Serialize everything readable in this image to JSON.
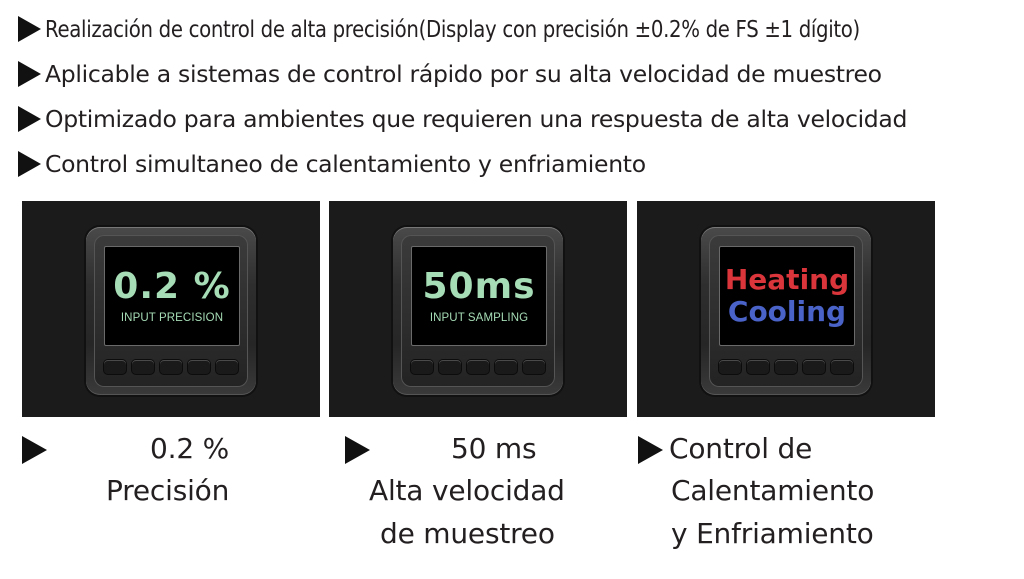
{
  "bullets": [
    "Realización de control de alta precisión(Display con precisión ±0.2% de FS ±1 dígito)",
    "Aplicable a sistemas de control rápido por su alta velocidad de muestreo",
    "Optimizado para ambientes que requieren una respuesta de alta velocidad",
    "Control simultaneo de calentamiento y enfriamiento"
  ],
  "panels": [
    {
      "big": "0.2 %",
      "small": "INPUT PRECISION"
    },
    {
      "big": "50ms",
      "small": "INPUT SAMPLING"
    },
    {
      "line1": "Heating",
      "line2": "Cooling"
    }
  ],
  "captions": [
    {
      "line1": "0.2 %",
      "line2": "Precisión"
    },
    {
      "line1": "50 ms",
      "line2": "Alta velocidad",
      "line3": "de muestreo"
    },
    {
      "line1": "Control de",
      "line2": "Calentamiento",
      "line3": "y Enfriamiento"
    }
  ],
  "colors": {
    "display_green": "#a6dcb6",
    "heating_red": "#d9353a",
    "cooling_blue": "#4a63c9",
    "panel_bg": "#1b1b1b"
  }
}
